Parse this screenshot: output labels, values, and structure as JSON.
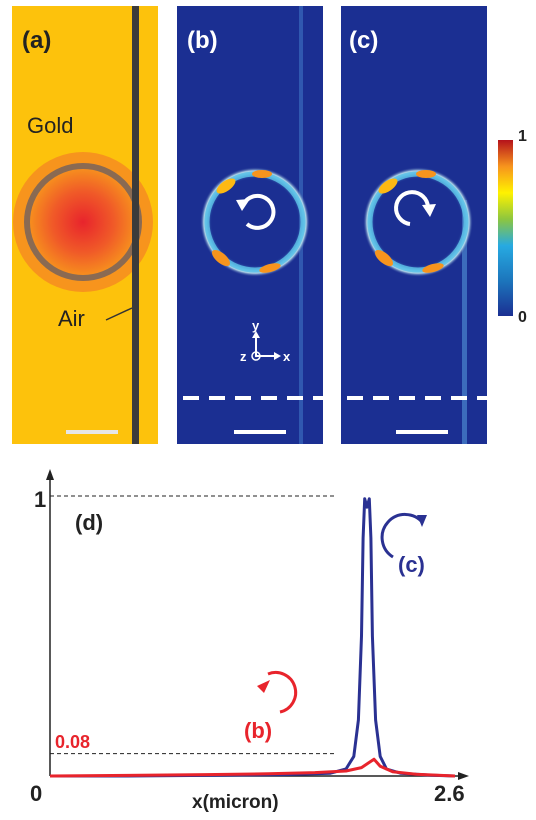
{
  "panels": {
    "a": {
      "label": "(a)",
      "gold_label": "Gold",
      "air_label": "Air"
    },
    "b": {
      "label": "(b)"
    },
    "c": {
      "label": "(c)"
    }
  },
  "colorbar": {
    "max_label": "1",
    "min_label": "0"
  },
  "axes_glyph": {
    "y": "y",
    "z": "z",
    "x": "x"
  },
  "colors": {
    "gold": "#fdc20c",
    "field_bg": "#1b2f92",
    "trace_b": "#e8242c",
    "trace_c": "#2a3192",
    "marker_ring": "#8a6a52",
    "waveguide": "#3b3b3b"
  },
  "chart_data": {
    "type": "line",
    "panel_label": "(d)",
    "xlabel": "x(micron)",
    "ylabel": "",
    "x_tick_labels": [
      "0",
      "2.6"
    ],
    "y_tick_labels": [
      "1"
    ],
    "xlim": [
      0,
      2.6
    ],
    "ylim": [
      0,
      1.1
    ],
    "annotations": {
      "threshold_label": "0.08",
      "threshold_value": 0.08,
      "peak_value": 1.0
    },
    "series": [
      {
        "name": "(c)",
        "color": "#2a3192",
        "points": [
          [
            0,
            0.0
          ],
          [
            0.5,
            0.0
          ],
          [
            1.0,
            0.002
          ],
          [
            1.5,
            0.005
          ],
          [
            1.8,
            0.01
          ],
          [
            1.9,
            0.025
          ],
          [
            1.95,
            0.07
          ],
          [
            1.98,
            0.2
          ],
          [
            2.0,
            0.5
          ],
          [
            2.01,
            0.85
          ],
          [
            2.02,
            0.99
          ],
          [
            2.035,
            0.96
          ],
          [
            2.05,
            0.99
          ],
          [
            2.06,
            0.85
          ],
          [
            2.07,
            0.5
          ],
          [
            2.09,
            0.2
          ],
          [
            2.12,
            0.07
          ],
          [
            2.16,
            0.025
          ],
          [
            2.25,
            0.01
          ],
          [
            2.45,
            0.003
          ],
          [
            2.6,
            0.0
          ]
        ]
      },
      {
        "name": "(b)",
        "color": "#e8242c",
        "points": [
          [
            0,
            0.0
          ],
          [
            0.5,
            0.002
          ],
          [
            1.0,
            0.005
          ],
          [
            1.4,
            0.008
          ],
          [
            1.7,
            0.012
          ],
          [
            1.9,
            0.018
          ],
          [
            2.0,
            0.03
          ],
          [
            2.04,
            0.045
          ],
          [
            2.08,
            0.06
          ],
          [
            2.12,
            0.035
          ],
          [
            2.2,
            0.015
          ],
          [
            2.35,
            0.006
          ],
          [
            2.6,
            0.0
          ]
        ]
      }
    ]
  }
}
